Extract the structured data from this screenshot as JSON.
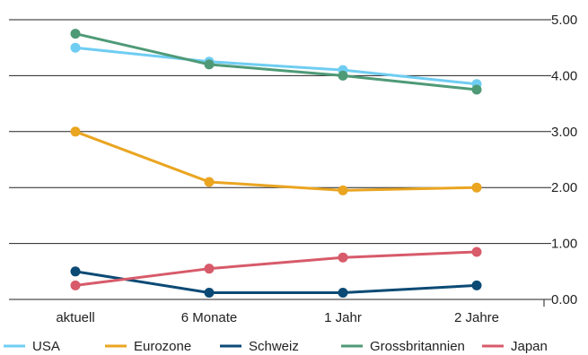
{
  "chart_data": {
    "type": "line",
    "categories": [
      "aktuell",
      "6 Monate",
      "1 Jahr",
      "2 Jahre"
    ],
    "y_ticks": [
      "0.00",
      "1.00",
      "2.00",
      "3.00",
      "4.00",
      "5.00"
    ],
    "ylim": [
      0,
      5
    ],
    "y_axis_side": "right",
    "grid": true,
    "legend": "bottom",
    "series": [
      {
        "name": "USA",
        "color": "#6fcdf2",
        "values": [
          4.5,
          4.25,
          4.1,
          3.85
        ]
      },
      {
        "name": "Eurozone",
        "color": "#eaa521",
        "values": [
          3.0,
          2.1,
          1.95,
          2.0
        ]
      },
      {
        "name": "Schweiz",
        "color": "#0b4a75",
        "values": [
          0.5,
          0.12,
          0.12,
          0.25
        ]
      },
      {
        "name": "Grossbritannien",
        "color": "#4e9a77",
        "values": [
          4.75,
          4.2,
          4.0,
          3.75
        ]
      },
      {
        "name": "Japan",
        "color": "#d75b6a",
        "values": [
          0.25,
          0.55,
          0.75,
          0.85
        ]
      }
    ]
  }
}
